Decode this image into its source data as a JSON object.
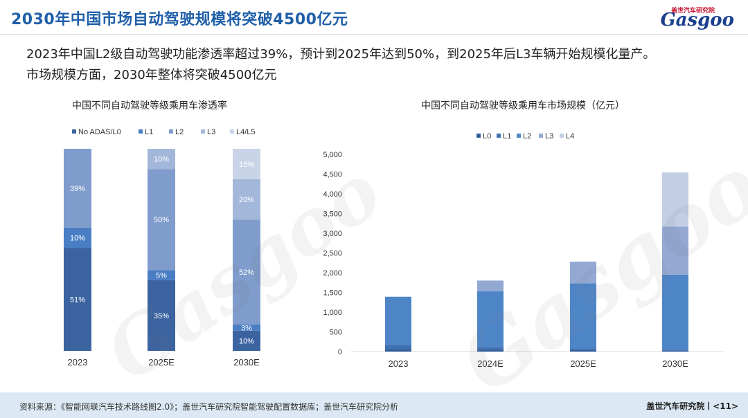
{
  "header": {
    "title": "2030年中国市场自动驾驶规模将突破4500亿元",
    "logo_text": "Gasgoo",
    "logo_top": "盖世汽车研究院"
  },
  "summary": {
    "line1": "2023年中国L2级自动驾驶功能渗透率超过39%，预计到2025年达到50%，到2025年后L3车辆开始规模化量产。",
    "line2": "市场规模方面，2030年整体将突破4500亿元"
  },
  "footer": {
    "source": "资料来源：《智能网联汽车技术路线图2.0》；盖世汽车研究院智能驾驶配置数据库；盖世汽车研究院分析",
    "brand": "盖世汽车研究院丨<11>"
  },
  "colors": {
    "title": "#1f5fa8",
    "seriesA": [
      "#3b63a0",
      "#4a7ec4",
      "#7f9ccc",
      "#a3b7da",
      "#c9d4e8"
    ],
    "seriesB": [
      "#2f5d9c",
      "#3f70b0",
      "#4e85c7",
      "#93a9d3",
      "#c3cee4"
    ]
  },
  "chart_data": [
    {
      "type": "bar",
      "stacked": true,
      "title": "中国不同自动驾驶等级乘用车渗透率",
      "categories": [
        "2023",
        "2025E",
        "2030E"
      ],
      "series": [
        {
          "name": "No ADAS/L0",
          "values": [
            51,
            35,
            10
          ],
          "labels": [
            "51%",
            "35%",
            "10%"
          ]
        },
        {
          "name": "L1",
          "values": [
            10,
            5,
            3
          ],
          "labels": [
            "10%",
            "5%",
            "3%"
          ]
        },
        {
          "name": "L2",
          "values": [
            39,
            50,
            52
          ],
          "labels": [
            "39%",
            "50%",
            "52%"
          ]
        },
        {
          "name": "L3",
          "values": [
            0,
            10,
            20
          ],
          "labels": [
            "",
            "10%",
            "20%"
          ]
        },
        {
          "name": "L4/L5",
          "values": [
            0,
            0,
            15
          ],
          "labels": [
            "",
            "",
            "15%"
          ]
        }
      ],
      "ylim": [
        0,
        100
      ],
      "legend": "top",
      "grid": false
    },
    {
      "type": "bar",
      "stacked": true,
      "title": "中国不同自动驾驶等级乘用车市场规模（亿元）",
      "categories": [
        "2023",
        "2024E",
        "2025E",
        "2030E"
      ],
      "series": [
        {
          "name": "L0",
          "values": [
            60,
            50,
            40,
            30
          ]
        },
        {
          "name": "L1",
          "values": [
            110,
            60,
            40,
            20
          ]
        },
        {
          "name": "L2",
          "values": [
            1220,
            1420,
            1650,
            1900
          ]
        },
        {
          "name": "L3",
          "values": [
            0,
            270,
            550,
            1220
          ]
        },
        {
          "name": "L4",
          "values": [
            0,
            0,
            0,
            1370
          ]
        }
      ],
      "ylim": [
        0,
        5000
      ],
      "yticks": [
        "0",
        "500",
        "1,000",
        "1,500",
        "2,000",
        "2,500",
        "3,000",
        "3,500",
        "4,000",
        "4,500",
        "5,000"
      ],
      "legend": "top",
      "grid": false
    }
  ]
}
